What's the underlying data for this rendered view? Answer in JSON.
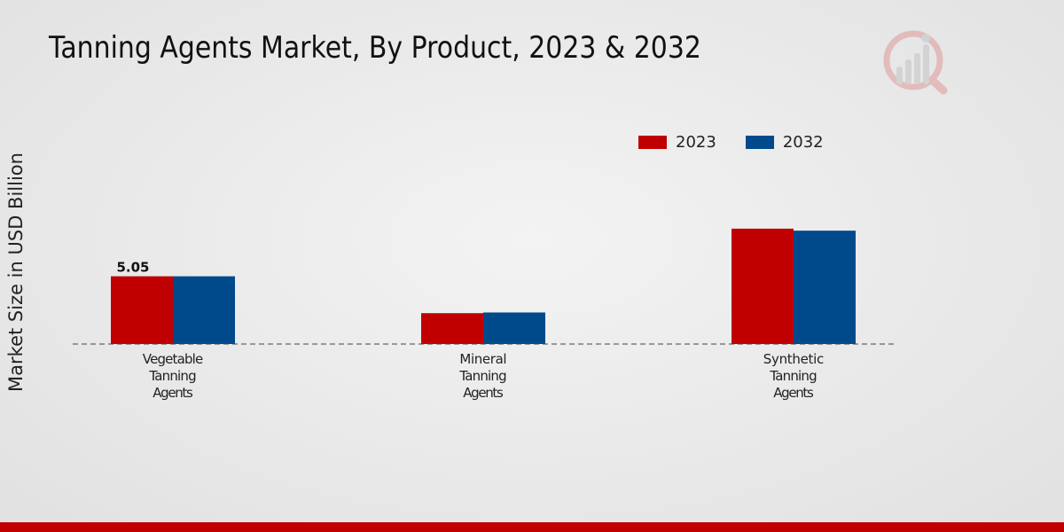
{
  "title": "Tanning Agents Market, By Product, 2023 & 2032",
  "colors": {
    "series_2023": "#c00000",
    "series_2032": "#004a8c",
    "footer": "#c00000"
  },
  "legend": [
    {
      "label": "2023",
      "color": "#c00000"
    },
    {
      "label": "2032",
      "color": "#004a8c"
    }
  ],
  "chart_data": {
    "type": "bar",
    "title": "Tanning Agents Market, By Product, 2023 & 2032",
    "xlabel": "",
    "ylabel": "Market Size in USD Billion",
    "categories": [
      "Vegetable\nTanning\nAgents",
      "Mineral\nTanning\nAgents",
      "Synthetic\nTanning\nAgents"
    ],
    "series": [
      {
        "name": "2023",
        "values": [
          5.05,
          2.3,
          8.6
        ]
      },
      {
        "name": "2032",
        "values": [
          5.05,
          2.35,
          8.45
        ]
      }
    ],
    "data_labels": [
      {
        "series": 0,
        "index": 0,
        "text": "5.05"
      }
    ],
    "ylim": [
      0,
      23
    ],
    "grid": false,
    "legend_position": "top-right"
  }
}
